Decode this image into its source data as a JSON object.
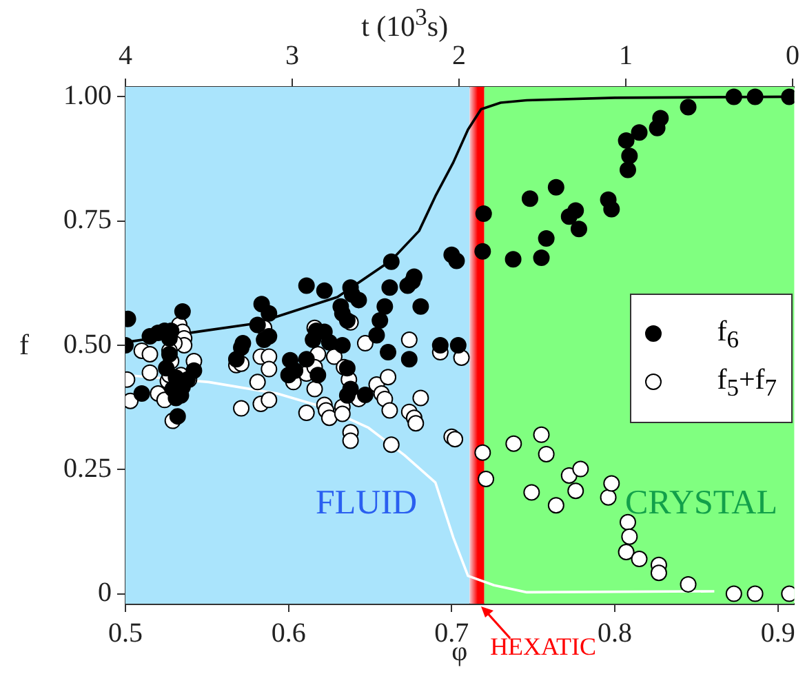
{
  "chart_data": {
    "type": "scatter",
    "xlabel": "φ",
    "ylabel": "f",
    "x2label": "t (10$^{3}$s)",
    "xlim": [
      0.5,
      0.91
    ],
    "xticks": [
      0.5,
      0.6,
      0.7,
      0.8,
      0.9
    ],
    "ylim": [
      -0.02,
      1.02
    ],
    "yticks": [
      0,
      0.25,
      {
        "value": 0.5,
        "label": "0.50"
      },
      0.75,
      {
        "value": 1,
        "label": "1.00"
      }
    ],
    "x2lim": [
      4.0,
      -0.01
    ],
    "x2ticks": [
      4,
      3,
      2,
      1,
      0
    ],
    "grid": false,
    "legend": "right",
    "marker": "circle",
    "bands": [
      {
        "axis": "x",
        "from": 0.5,
        "to": 0.711,
        "label": "FLUID",
        "color": "#aae4fc"
      },
      {
        "axis": "x",
        "from": 0.711,
        "to": 0.72,
        "label": "HEXATIC",
        "color": "#ff0000"
      },
      {
        "axis": "x",
        "from": 0.72,
        "to": 0.91,
        "label": "CRYSTAL",
        "color": "#80ff80"
      }
    ],
    "series": [
      {
        "type": "line",
        "color": "#000000",
        "marker": "none",
        "x": [
          0.5,
          0.55,
          0.58,
          0.63,
          0.663,
          0.68,
          0.69,
          0.701,
          0.71,
          0.718,
          0.73,
          0.746,
          0.8,
          0.907
        ],
        "values": [
          0.506,
          0.53,
          0.544,
          0.597,
          0.671,
          0.73,
          0.8,
          0.868,
          0.934,
          0.975,
          0.988,
          0.993,
          0.998,
          1.0
        ]
      },
      {
        "type": "line",
        "color": "#ffffff",
        "marker": "none",
        "x": [
          0.5,
          0.551,
          0.593,
          0.621,
          0.649,
          0.671,
          0.69,
          0.701,
          0.71,
          0.726,
          0.746,
          0.861
        ],
        "values": [
          0.44,
          0.426,
          0.403,
          0.376,
          0.334,
          0.279,
          0.224,
          0.113,
          0.036,
          0.017,
          0.003,
          0.005
        ]
      },
      {
        "type": "scatter",
        "name": "f$_{6}$",
        "color": "#000000",
        "x": [
          0.5015,
          0.5,
          0.51,
          0.515,
          0.52,
          0.524,
          0.528,
          0.535,
          0.527,
          0.525,
          0.531,
          0.534,
          0.531,
          0.538,
          0.542,
          0.532,
          0.529,
          0.535,
          0.527,
          0.5835,
          0.588,
          0.581,
          0.585,
          0.572,
          0.571,
          0.568,
          0.588,
          0.601,
          0.604,
          0.6,
          0.611,
          0.618,
          0.615,
          0.622,
          0.625,
          0.617,
          0.611,
          0.622,
          0.632,
          0.633,
          0.636,
          0.638,
          0.639,
          0.643,
          0.633,
          0.636,
          0.636,
          0.638,
          0.647,
          0.654,
          0.656,
          0.659,
          0.661,
          0.662,
          0.663,
          0.673,
          0.676,
          0.677,
          0.681,
          0.674,
          0.693,
          0.7,
          0.703,
          0.704,
          0.7196,
          0.719,
          0.7377,
          0.755,
          0.758,
          0.748,
          0.764,
          0.772,
          0.776,
          0.778,
          0.796,
          0.798,
          0.807,
          0.815,
          0.809,
          0.808,
          0.826,
          0.828,
          0.845,
          0.873,
          0.886,
          0.907
        ],
        "values": [
          0.553,
          0.5,
          0.403,
          0.518,
          0.525,
          0.529,
          0.529,
          0.568,
          0.482,
          0.454,
          0.435,
          0.399,
          0.394,
          0.431,
          0.449,
          0.357,
          0.412,
          0.416,
          0.514,
          0.583,
          0.564,
          0.541,
          0.511,
          0.504,
          0.495,
          0.472,
          0.518,
          0.47,
          0.449,
          0.44,
          0.472,
          0.44,
          0.511,
          0.527,
          0.506,
          0.529,
          0.62,
          0.61,
          0.578,
          0.564,
          0.55,
          0.616,
          0.602,
          0.591,
          0.5,
          0.454,
          0.399,
          0.412,
          0.4,
          0.52,
          0.55,
          0.578,
          0.486,
          0.616,
          0.668,
          0.62,
          0.629,
          0.638,
          0.578,
          0.472,
          0.5,
          0.682,
          0.67,
          0.5,
          0.765,
          0.689,
          0.673,
          0.676,
          0.715,
          0.795,
          0.818,
          0.759,
          0.771,
          0.734,
          0.793,
          0.774,
          0.912,
          0.928,
          0.881,
          0.853,
          0.937,
          0.957,
          0.979,
          1.0,
          1.0,
          1.0
        ]
      },
      {
        "type": "scatter",
        "name": "f$_{5}$+f$_{7}$",
        "color": "#ffffff",
        "x": [
          0.533,
          0.535,
          0.536,
          0.536,
          0.53,
          0.51,
          0.515,
          0.527,
          0.542,
          0.515,
          0.501,
          0.503,
          0.52,
          0.524,
          0.526,
          0.527,
          0.528,
          0.534,
          0.539,
          0.529,
          0.568,
          0.571,
          0.583,
          0.585,
          0.588,
          0.588,
          0.581,
          0.583,
          0.588,
          0.571,
          0.603,
          0.611,
          0.616,
          0.618,
          0.616,
          0.616,
          0.611,
          0.622,
          0.623,
          0.625,
          0.628,
          0.634,
          0.638,
          0.637,
          0.633,
          0.633,
          0.643,
          0.638,
          0.638,
          0.647,
          0.654,
          0.657,
          0.659,
          0.661,
          0.662,
          0.663,
          0.674,
          0.674,
          0.677,
          0.678,
          0.681,
          0.693,
          0.7,
          0.702,
          0.706,
          0.719,
          0.721,
          0.738,
          0.755,
          0.758,
          0.749,
          0.764,
          0.772,
          0.779,
          0.776,
          0.796,
          0.798,
          0.808,
          0.809,
          0.807,
          0.815,
          0.827,
          0.827,
          0.845,
          0.873,
          0.886,
          0.907
        ],
        "values": [
          0.541,
          0.527,
          0.514,
          0.5,
          0.504,
          0.489,
          0.482,
          0.489,
          0.468,
          0.445,
          0.431,
          0.388,
          0.403,
          0.39,
          0.428,
          0.44,
          0.468,
          0.44,
          0.431,
          0.348,
          0.46,
          0.463,
          0.477,
          0.535,
          0.477,
          0.452,
          0.426,
          0.382,
          0.39,
          0.373,
          0.426,
          0.443,
          0.535,
          0.482,
          0.456,
          0.412,
          0.364,
          0.38,
          0.369,
          0.354,
          0.477,
          0.456,
          0.546,
          0.431,
          0.376,
          0.362,
          0.392,
          0.325,
          0.308,
          0.504,
          0.421,
          0.403,
          0.392,
          0.436,
          0.369,
          0.3,
          0.511,
          0.366,
          0.354,
          0.343,
          0.394,
          0.486,
          0.316,
          0.311,
          0.475,
          0.284,
          0.231,
          0.302,
          0.32,
          0.281,
          0.204,
          0.178,
          0.238,
          0.251,
          0.207,
          0.194,
          0.222,
          0.144,
          0.115,
          0.084,
          0.07,
          0.058,
          0.042,
          0.019,
          0,
          0,
          0
        ]
      }
    ]
  }
}
